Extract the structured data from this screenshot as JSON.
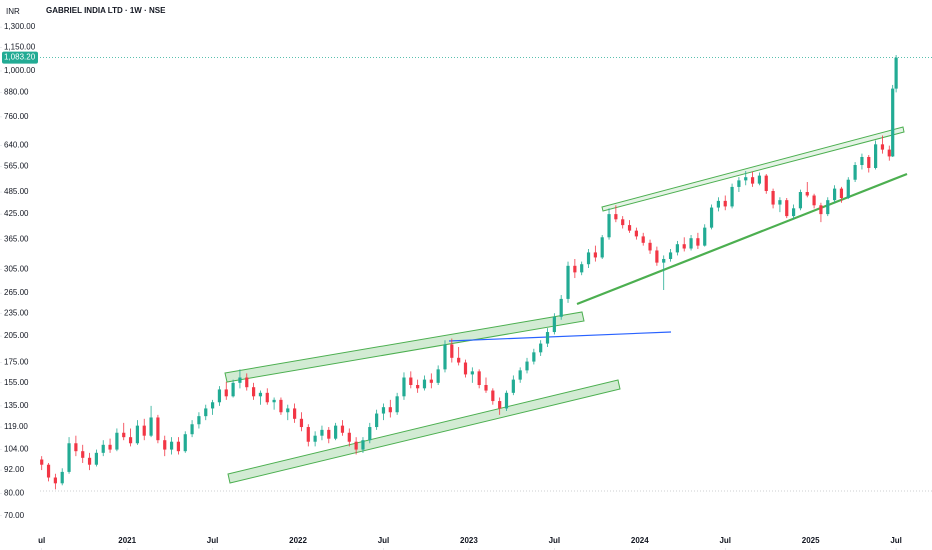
{
  "chart_data": {
    "type": "candlestick",
    "title": "GABRIEL INDIA LTD · 1W · NSE",
    "currency": "INR",
    "log_scale": true,
    "up_color": "#22ab94",
    "down_color": "#f23645",
    "last_price": {
      "value": 1083.2,
      "label": "1,083.20"
    },
    "xlim": [
      2020.49,
      2025.71
    ],
    "xticks": [
      {
        "value": 2020.5,
        "label": "ul"
      },
      2021,
      {
        "value": 2021.5,
        "label": "Jul"
      },
      2022,
      {
        "value": 2022.5,
        "label": "Jul"
      },
      2023,
      {
        "value": 2023.5,
        "label": "Jul"
      },
      2024,
      {
        "value": 2024.5,
        "label": "Jul"
      },
      2025,
      {
        "value": 2025.5,
        "label": "Jul"
      }
    ],
    "ylim": [
      64.3,
      1440
    ],
    "yticks": [
      {
        "value": 70,
        "label": "70.00"
      },
      {
        "value": 80,
        "label": "80.00"
      },
      {
        "value": 92,
        "label": "92.00"
      },
      {
        "value": 104,
        "label": "104.00"
      },
      {
        "value": 119,
        "label": "119.00"
      },
      {
        "value": 135,
        "label": "135.00"
      },
      {
        "value": 155,
        "label": "155.00"
      },
      {
        "value": 175,
        "label": "175.00"
      },
      {
        "value": 205,
        "label": "205.00"
      },
      {
        "value": 235,
        "label": "235.00"
      },
      {
        "value": 265,
        "label": "265.00"
      },
      {
        "value": 305,
        "label": "305.00"
      },
      {
        "value": 365,
        "label": "365.00"
      },
      {
        "value": 425,
        "label": "425.00"
      },
      {
        "value": 485,
        "label": "485.00"
      },
      {
        "value": 565,
        "label": "565.00"
      },
      {
        "value": 640,
        "label": "640.00"
      },
      {
        "value": 760,
        "label": "760.00"
      },
      {
        "value": 880,
        "label": "880.00"
      },
      {
        "value": 1000,
        "label": "1,000.00"
      },
      {
        "value": 1150,
        "label": "1,150.00"
      },
      {
        "value": 1300,
        "label": "1,300.00"
      }
    ],
    "x": [
      2020.5,
      2020.54,
      2020.58,
      2020.62,
      2020.66,
      2020.7,
      2020.74,
      2020.78,
      2020.82,
      2020.86,
      2020.9,
      2020.94,
      2020.98,
      2021.02,
      2021.06,
      2021.1,
      2021.14,
      2021.18,
      2021.22,
      2021.26,
      2021.3,
      2021.34,
      2021.38,
      2021.42,
      2021.46,
      2021.5,
      2021.54,
      2021.58,
      2021.62,
      2021.66,
      2021.7,
      2021.74,
      2021.78,
      2021.82,
      2021.86,
      2021.9,
      2021.94,
      2021.98,
      2022.02,
      2022.06,
      2022.1,
      2022.14,
      2022.18,
      2022.22,
      2022.26,
      2022.3,
      2022.34,
      2022.38,
      2022.42,
      2022.46,
      2022.5,
      2022.54,
      2022.58,
      2022.62,
      2022.66,
      2022.7,
      2022.74,
      2022.78,
      2022.82,
      2022.86,
      2022.9,
      2022.94,
      2022.98,
      2023.02,
      2023.06,
      2023.1,
      2023.14,
      2023.18,
      2023.22,
      2023.26,
      2023.3,
      2023.34,
      2023.38,
      2023.42,
      2023.46,
      2023.5,
      2023.54,
      2023.58,
      2023.62,
      2023.66,
      2023.7,
      2023.74,
      2023.78,
      2023.82,
      2023.86,
      2023.9,
      2023.94,
      2023.98,
      2024.02,
      2024.06,
      2024.1,
      2024.14,
      2024.18,
      2024.22,
      2024.26,
      2024.3,
      2024.34,
      2024.38,
      2024.42,
      2024.46,
      2024.5,
      2024.54,
      2024.58,
      2024.62,
      2024.66,
      2024.7,
      2024.74,
      2024.78,
      2024.82,
      2024.86,
      2024.9,
      2024.94,
      2024.98,
      2025.02,
      2025.06,
      2025.1,
      2025.14,
      2025.18,
      2025.22,
      2025.26,
      2025.3,
      2025.34,
      2025.38,
      2025.42,
      2025.46,
      2025.48,
      2025.5
    ],
    "open": [
      98,
      95,
      88,
      85,
      91,
      108,
      103,
      99,
      95,
      102,
      107,
      104,
      115,
      112,
      108,
      120,
      113,
      126,
      110,
      104,
      109,
      103,
      114,
      121,
      127,
      133,
      138,
      149,
      143,
      155,
      160,
      151,
      143,
      146,
      138,
      140,
      130,
      133,
      125,
      119,
      109,
      113,
      117,
      111,
      120,
      115,
      109,
      104,
      110,
      119,
      129,
      134,
      130,
      143,
      160,
      153,
      150,
      158,
      155,
      168,
      195,
      180,
      175,
      163,
      166,
      153,
      148,
      139,
      133,
      146,
      158,
      167,
      176,
      186,
      196,
      210,
      230,
      256,
      312,
      300,
      315,
      338,
      328,
      370,
      425,
      412,
      398,
      385,
      372,
      358,
      342,
      318,
      325,
      338,
      355,
      346,
      368,
      352,
      392,
      442,
      460,
      445,
      500,
      520,
      530,
      510,
      535,
      488,
      450,
      462,
      420,
      440,
      485,
      475,
      448,
      425,
      462,
      495,
      468,
      522,
      570,
      598,
      560,
      645,
      625,
      600,
      900
    ],
    "high": [
      100,
      96,
      90,
      93,
      112,
      113,
      107,
      102,
      104,
      110,
      111,
      118,
      122,
      118,
      124,
      125,
      135,
      128,
      113,
      112,
      112,
      116,
      124,
      130,
      136,
      140,
      152,
      156,
      158,
      168,
      164,
      155,
      148,
      150,
      142,
      142,
      136,
      137,
      130,
      121,
      116,
      120,
      119,
      122,
      124,
      118,
      112,
      112,
      122,
      132,
      137,
      140,
      146,
      165,
      166,
      158,
      162,
      164,
      172,
      200,
      202,
      192,
      178,
      170,
      168,
      160,
      150,
      142,
      148,
      162,
      170,
      180,
      190,
      200,
      215,
      235,
      262,
      320,
      325,
      320,
      345,
      352,
      375,
      440,
      448,
      420,
      410,
      392,
      380,
      365,
      350,
      332,
      345,
      362,
      370,
      375,
      380,
      400,
      450,
      470,
      475,
      510,
      530,
      550,
      548,
      545,
      540,
      495,
      470,
      468,
      450,
      492,
      515,
      480,
      455,
      470,
      505,
      500,
      530,
      580,
      610,
      605,
      660,
      680,
      640,
      920,
      1100
    ],
    "low": [
      92,
      86,
      82,
      84,
      90,
      100,
      96,
      92,
      94,
      100,
      102,
      103,
      110,
      106,
      107,
      110,
      112,
      108,
      100,
      101,
      101,
      102,
      112,
      118,
      124,
      128,
      135,
      140,
      142,
      150,
      148,
      140,
      136,
      136,
      132,
      128,
      124,
      122,
      116,
      106,
      106,
      110,
      108,
      110,
      113,
      106,
      101,
      102,
      108,
      117,
      124,
      126,
      128,
      140,
      150,
      146,
      148,
      150,
      153,
      165,
      175,
      172,
      160,
      155,
      150,
      146,
      136,
      128,
      131,
      144,
      155,
      164,
      173,
      182,
      192,
      207,
      226,
      250,
      290,
      295,
      308,
      320,
      325,
      365,
      405,
      390,
      380,
      365,
      352,
      335,
      312,
      270,
      320,
      332,
      340,
      342,
      345,
      350,
      388,
      432,
      435,
      440,
      485,
      505,
      500,
      505,
      480,
      440,
      430,
      415,
      412,
      435,
      470,
      440,
      405,
      420,
      455,
      455,
      465,
      515,
      555,
      545,
      555,
      610,
      585,
      598,
      880
    ],
    "close": [
      95,
      88,
      85,
      91,
      108,
      103,
      99,
      95,
      102,
      107,
      104,
      115,
      112,
      108,
      120,
      113,
      126,
      110,
      104,
      109,
      103,
      114,
      121,
      127,
      133,
      138,
      149,
      143,
      155,
      160,
      151,
      143,
      146,
      138,
      140,
      130,
      133,
      125,
      119,
      109,
      113,
      117,
      111,
      120,
      115,
      109,
      104,
      110,
      119,
      129,
      134,
      130,
      143,
      160,
      153,
      150,
      158,
      155,
      168,
      195,
      180,
      175,
      163,
      166,
      153,
      148,
      139,
      133,
      146,
      158,
      167,
      176,
      186,
      196,
      210,
      230,
      256,
      312,
      300,
      315,
      338,
      328,
      370,
      425,
      412,
      398,
      385,
      372,
      358,
      342,
      318,
      325,
      338,
      355,
      346,
      368,
      352,
      392,
      442,
      460,
      445,
      500,
      520,
      530,
      510,
      535,
      488,
      450,
      462,
      420,
      440,
      485,
      475,
      448,
      425,
      462,
      495,
      468,
      522,
      570,
      598,
      560,
      645,
      625,
      600,
      900,
      1083.2
    ]
  }
}
